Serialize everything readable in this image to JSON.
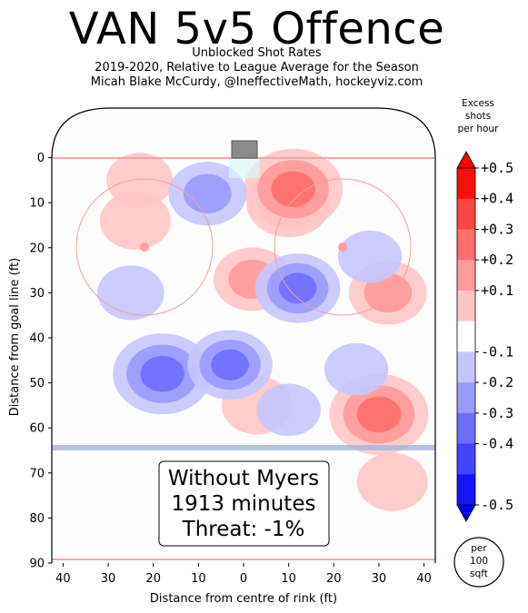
{
  "title": "VAN 5v5 Offence",
  "subtitle_lines": [
    "Unblocked Shot Rates",
    "2019-2020, Relative to League Average for the Season",
    "Micah Blake McCurdy, @IneffectiveMath, hockeyviz.com"
  ],
  "colorbar": {
    "title_lines": [
      "Excess",
      "shots",
      "per hour"
    ],
    "ticks": [
      "+0.5",
      "+0.4",
      "+0.3",
      "+0.2",
      "+0.1",
      "-0.1",
      "-0.2",
      "-0.3",
      "-0.4",
      "-0.5"
    ],
    "colors": [
      "#ff0d0d",
      "#ff4444",
      "#ff6e6e",
      "#ff9a9a",
      "#ffc6c6",
      "#ffffff",
      "#c6c6ff",
      "#9a9aff",
      "#6e6eff",
      "#4444ff",
      "#1414ff"
    ],
    "unit_lines": [
      "per",
      "100",
      "sqft"
    ]
  },
  "annotation": {
    "lines": [
      "Without Myers",
      "1913 minutes",
      "Threat: -1%"
    ]
  },
  "chart_data": {
    "type": "heatmap",
    "title": "VAN 5v5 Offence",
    "xlabel": "Distance from centre of rink (ft)",
    "ylabel": "Distance from goal line (ft)",
    "xlim": [
      -42.5,
      42.5
    ],
    "ylim": [
      90,
      -11
    ],
    "xticks": [
      "40",
      "30",
      "20",
      "10",
      "0",
      "10",
      "20",
      "30",
      "40"
    ],
    "xtick_values": [
      -40,
      -30,
      -20,
      -10,
      0,
      10,
      20,
      30,
      40
    ],
    "yticks": [
      "0",
      "10",
      "20",
      "30",
      "40",
      "50",
      "60",
      "70",
      "80",
      "90"
    ],
    "ytick_values": [
      0,
      10,
      20,
      30,
      40,
      50,
      60,
      70,
      80,
      90
    ],
    "value_range": [
      -0.5,
      0.5
    ],
    "hotspots": [
      {
        "x": 10,
        "y": 10,
        "value": 0.25
      },
      {
        "x": 11,
        "y": 7,
        "value": 0.35
      },
      {
        "x": 2,
        "y": 27,
        "value": 0.2
      },
      {
        "x": 32,
        "y": 30,
        "value": 0.2
      },
      {
        "x": 30,
        "y": 57,
        "value": 0.35
      },
      {
        "x": 33,
        "y": 72,
        "value": 0.15
      },
      {
        "x": 3,
        "y": 55,
        "value": 0.15
      },
      {
        "x": -24,
        "y": 14,
        "value": 0.15
      },
      {
        "x": -23,
        "y": 5,
        "value": 0.12
      },
      {
        "x": 12,
        "y": 29,
        "value": -0.25
      },
      {
        "x": 28,
        "y": 22,
        "value": -0.1
      },
      {
        "x": -18,
        "y": 48,
        "value": -0.35
      },
      {
        "x": -3,
        "y": 46,
        "value": -0.25
      },
      {
        "x": -25,
        "y": 30,
        "value": -0.12
      },
      {
        "x": -8,
        "y": 8,
        "value": -0.2
      },
      {
        "x": 25,
        "y": 47,
        "value": -0.1
      },
      {
        "x": 10,
        "y": 56,
        "value": -0.1
      }
    ]
  }
}
